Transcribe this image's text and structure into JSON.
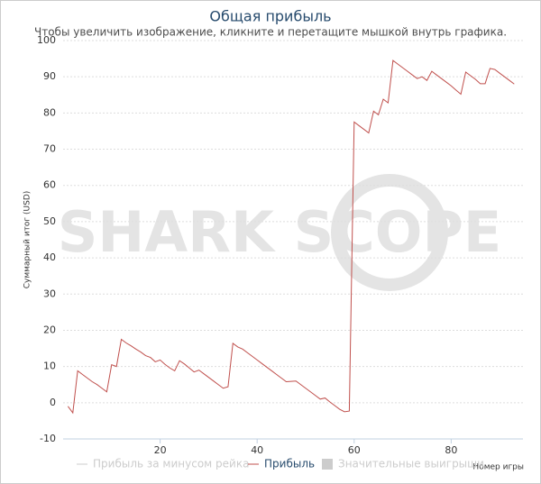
{
  "chart_data": {
    "type": "line",
    "title": "Общая прибыль",
    "subtitle": "Чтобы увеличить изображение, кликните и перетащите мышкой внутрь графика.",
    "watermark": "SHARK SCOPE",
    "ylabel": "Суммарный итог (USD)",
    "xlabel": "Номер игры",
    "x": [
      1,
      2,
      3,
      4,
      5,
      6,
      7,
      8,
      9,
      10,
      11,
      12,
      13,
      14,
      15,
      16,
      17,
      18,
      19,
      20,
      21,
      22,
      23,
      24,
      25,
      26,
      27,
      28,
      29,
      30,
      31,
      32,
      33,
      34,
      35,
      36,
      37,
      38,
      39,
      40,
      41,
      42,
      43,
      44,
      45,
      46,
      47,
      48,
      49,
      50,
      51,
      52,
      53,
      54,
      55,
      56,
      57,
      58,
      59,
      60,
      61,
      62,
      63,
      64,
      65,
      66,
      67,
      68,
      69,
      70,
      71,
      72,
      73,
      74,
      75,
      76,
      77,
      78,
      79,
      80,
      81,
      82,
      83,
      84,
      85,
      86,
      87,
      88,
      89,
      90,
      91,
      92,
      93
    ],
    "series": [
      {
        "name": "Прибыль за минусом рейка",
        "color": "#cccccc",
        "visible": false
      },
      {
        "name": "Прибыль",
        "color": "#c0504d",
        "visible": true,
        "values": [
          -1,
          -2.8,
          8.8,
          7.8,
          6.8,
          5.8,
          5,
          4,
          3,
          10.5,
          10,
          17.5,
          16.5,
          15.7,
          14.8,
          14,
          13,
          12.5,
          11.3,
          11.8,
          10.6,
          9.6,
          8.8,
          11.6,
          10.7,
          9.6,
          8.5,
          9,
          8,
          7,
          6,
          5,
          4,
          4.4,
          16.4,
          15.4,
          14.8,
          13.8,
          12.8,
          11.8,
          10.8,
          9.8,
          8.8,
          7.8,
          6.8,
          5.8,
          5.9,
          6,
          5,
          4,
          3,
          2,
          1,
          1.3,
          0.2,
          -0.8,
          -1.8,
          -2.5,
          -2.3,
          77.5,
          76.5,
          75.5,
          74.5,
          80.5,
          79.5,
          83.8,
          82.8,
          94.5,
          93.5,
          92.5,
          91.5,
          90.5,
          89.5,
          90,
          89,
          91.5,
          90.5,
          89.5,
          88.5,
          87.5,
          86.3,
          85.2,
          91.3,
          90.3,
          89.3,
          88.1,
          88.1,
          92.3,
          92,
          91,
          90,
          89,
          88
        ]
      },
      {
        "name": "Значительные выигрыши",
        "color": "#cccccc",
        "visible": false
      }
    ],
    "xlim": [
      0,
      94.8
    ],
    "xticks": [
      20,
      40,
      60,
      80
    ],
    "ylim": [
      -10,
      100
    ],
    "yticks": [
      -10,
      0,
      10,
      20,
      30,
      40,
      50,
      60,
      70,
      80,
      90,
      100
    ],
    "grid": true
  }
}
